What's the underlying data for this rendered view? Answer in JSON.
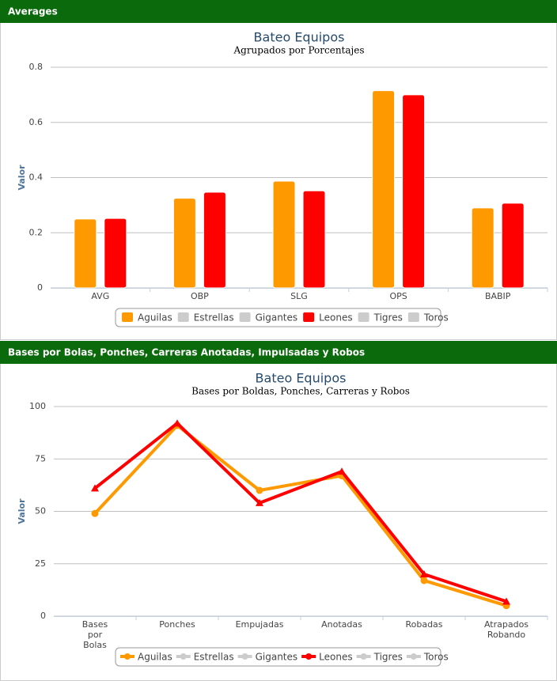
{
  "panels": [
    {
      "heading": "Averages"
    },
    {
      "heading": "Bases por Bolas, Ponches, Carreras Anotadas, Impulsadas y Robos"
    }
  ],
  "chart_data": [
    {
      "type": "bar",
      "title": "Bateo Equipos",
      "subtitle": "Agrupados por Porcentajes",
      "y_label": "Valor",
      "categories": [
        "AVG",
        "OBP",
        "SLG",
        "OPS",
        "BABIP"
      ],
      "series": [
        {
          "name": "Aguilas",
          "color": "#ff9900",
          "visible": true,
          "values": [
            0.25,
            0.325,
            0.387,
            0.715,
            0.29
          ]
        },
        {
          "name": "Estrellas",
          "color": "#cccccc",
          "visible": false
        },
        {
          "name": "Gigantes",
          "color": "#cccccc",
          "visible": false
        },
        {
          "name": "Leones",
          "color": "#ff0000",
          "visible": true,
          "values": [
            0.252,
            0.347,
            0.352,
            0.7,
            0.307
          ]
        },
        {
          "name": "Tigres",
          "color": "#cccccc",
          "visible": false
        },
        {
          "name": "Toros",
          "color": "#cccccc",
          "visible": false
        }
      ],
      "ylim": [
        0,
        0.8
      ],
      "yticks": [
        0,
        0.2,
        0.4,
        0.6,
        0.8
      ],
      "grid": true,
      "legend": "bottom"
    },
    {
      "type": "line",
      "title": "Bateo Equipos",
      "subtitle": "Bases por Boldas, Ponches, Carreras y Robos",
      "y_label": "Valor",
      "categories": [
        "Bases por Bolas",
        "Ponches",
        "Empujadas",
        "Anotadas",
        "Robadas",
        "Atrapados Robando"
      ],
      "series": [
        {
          "name": "Aguilas",
          "color": "#ff9900",
          "visible": true,
          "marker": "circle",
          "values": [
            49,
            91,
            60,
            67,
            17,
            5
          ]
        },
        {
          "name": "Estrellas",
          "color": "#cccccc",
          "visible": false
        },
        {
          "name": "Gigantes",
          "color": "#cccccc",
          "visible": false
        },
        {
          "name": "Leones",
          "color": "#ff0000",
          "visible": true,
          "marker": "triangle",
          "values": [
            61,
            92,
            54,
            69,
            20,
            7
          ]
        },
        {
          "name": "Tigres",
          "color": "#cccccc",
          "visible": false
        },
        {
          "name": "Toros",
          "color": "#cccccc",
          "visible": false
        }
      ],
      "ylim": [
        0,
        100
      ],
      "yticks": [
        0,
        25,
        50,
        75,
        100
      ],
      "grid": true,
      "legend": "bottom"
    }
  ]
}
